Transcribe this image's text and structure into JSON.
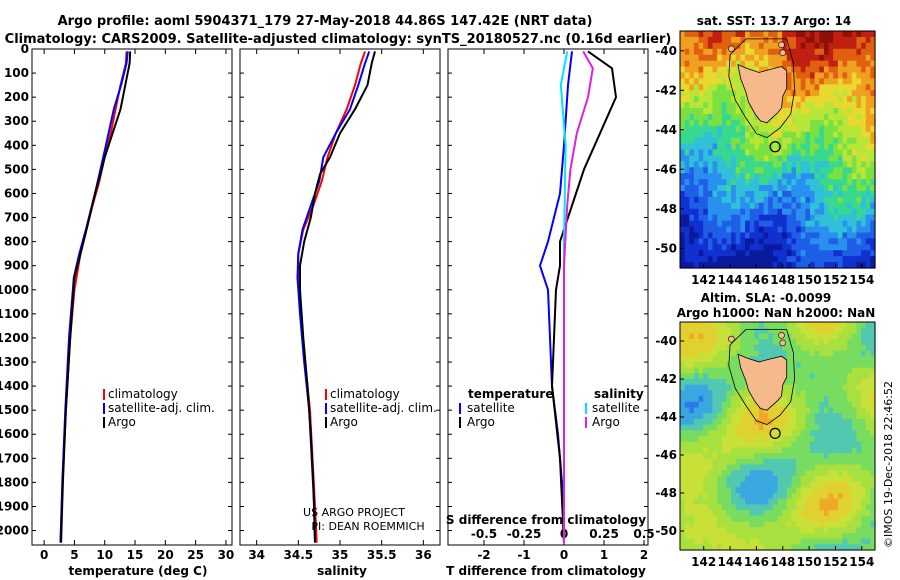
{
  "header": {
    "line1": "Argo profile: aoml 5904371_179 27-May-2018 44.86S 147.42E (NRT data)",
    "line2": "Climatology: CARS2009. Satellite-adjusted climatology: synTS_20180527.nc (0.16d earlier)"
  },
  "colors": {
    "climatology": "#ff0000",
    "satellite": "#0000ff",
    "argo": "#000000",
    "sat_salinity": "#00e5ff",
    "argo_salinity": "#e020e0",
    "land": "#f6b98b"
  },
  "chart_data": [
    {
      "type": "line",
      "id": "temperature",
      "xlabel": "temperature (deg C)",
      "xlim": [
        -2,
        31
      ],
      "xticks": [
        0,
        5,
        10,
        15,
        20,
        25,
        30
      ],
      "ylim": [
        2060,
        0
      ],
      "yticks": [
        0,
        100,
        200,
        300,
        400,
        500,
        600,
        700,
        800,
        900,
        1000,
        1100,
        1200,
        1300,
        1400,
        1500,
        1600,
        1700,
        1800,
        1900,
        2000
      ],
      "legend_position": "middle-right",
      "series": [
        {
          "name": "climatology",
          "key": "climatology",
          "points": [
            [
              13.6,
              10
            ],
            [
              13.5,
              60
            ],
            [
              12.6,
              150
            ],
            [
              11.8,
              250
            ],
            [
              11.0,
              350
            ],
            [
              10.0,
              450
            ],
            [
              9.1,
              550
            ],
            [
              8.0,
              650
            ],
            [
              7.0,
              750
            ],
            [
              6.0,
              850
            ],
            [
              5.0,
              1000
            ],
            [
              4.3,
              1200
            ],
            [
              3.6,
              1500
            ],
            [
              3.2,
              1700
            ],
            [
              2.9,
              1900
            ],
            [
              2.7,
              2050
            ]
          ]
        },
        {
          "name": "satellite-adj. clim.",
          "key": "satellite",
          "points": [
            [
              13.8,
              10
            ],
            [
              13.6,
              60
            ],
            [
              12.7,
              150
            ],
            [
              11.5,
              250
            ],
            [
              10.2,
              400
            ],
            [
              9.3,
              500
            ],
            [
              8.2,
              620
            ],
            [
              6.9,
              750
            ],
            [
              5.8,
              850
            ],
            [
              4.9,
              950
            ],
            [
              4.1,
              1200
            ],
            [
              3.5,
              1500
            ],
            [
              3.0,
              1800
            ],
            [
              2.7,
              2050
            ]
          ]
        },
        {
          "name": "Argo",
          "key": "argo",
          "points": [
            [
              14.2,
              10
            ],
            [
              14.1,
              60
            ],
            [
              13.4,
              150
            ],
            [
              12.6,
              250
            ],
            [
              11.3,
              350
            ],
            [
              10.0,
              450
            ],
            [
              9.3,
              520
            ],
            [
              8.2,
              620
            ],
            [
              7.0,
              750
            ],
            [
              6.0,
              850
            ],
            [
              5.0,
              950
            ],
            [
              4.3,
              1200
            ],
            [
              3.6,
              1500
            ],
            [
              3.1,
              1800
            ],
            [
              2.8,
              2050
            ]
          ]
        }
      ]
    },
    {
      "type": "line",
      "id": "salinity",
      "xlabel": "salinity",
      "xlim": [
        33.8,
        36.2
      ],
      "xticks": [
        34,
        34.5,
        35,
        35.5,
        36
      ],
      "xtick_labels": [
        "34",
        "34.5",
        "35",
        "35.5",
        "36"
      ],
      "ylim": [
        2060,
        0
      ],
      "legend_position": "middle-right",
      "annotations": [
        "US ARGO PROJECT",
        "PI: DEAN ROEMMICH"
      ],
      "series": [
        {
          "name": "climatology",
          "key": "climatology",
          "points": [
            [
              35.3,
              10
            ],
            [
              35.25,
              60
            ],
            [
              35.18,
              150
            ],
            [
              35.08,
              250
            ],
            [
              34.95,
              350
            ],
            [
              34.85,
              450
            ],
            [
              34.78,
              550
            ],
            [
              34.68,
              650
            ],
            [
              34.56,
              750
            ],
            [
              34.5,
              850
            ],
            [
              34.5,
              950
            ],
            [
              34.53,
              1100
            ],
            [
              34.58,
              1300
            ],
            [
              34.64,
              1500
            ],
            [
              34.67,
              1700
            ],
            [
              34.7,
              1900
            ],
            [
              34.72,
              2050
            ]
          ]
        },
        {
          "name": "satellite-adj. clim.",
          "key": "satellite",
          "points": [
            [
              35.35,
              10
            ],
            [
              35.3,
              60
            ],
            [
              35.22,
              150
            ],
            [
              35.12,
              250
            ],
            [
              34.95,
              350
            ],
            [
              34.8,
              450
            ],
            [
              34.75,
              550
            ],
            [
              34.65,
              650
            ],
            [
              34.55,
              750
            ],
            [
              34.5,
              850
            ],
            [
              34.49,
              950
            ],
            [
              34.52,
              1100
            ],
            [
              34.57,
              1300
            ],
            [
              34.63,
              1500
            ],
            [
              34.66,
              1700
            ],
            [
              34.69,
              1900
            ],
            [
              34.7,
              2050
            ]
          ]
        },
        {
          "name": "Argo",
          "key": "argo",
          "points": [
            [
              35.42,
              10
            ],
            [
              35.38,
              60
            ],
            [
              35.33,
              150
            ],
            [
              35.18,
              250
            ],
            [
              35.0,
              350
            ],
            [
              34.88,
              450
            ],
            [
              34.76,
              520
            ],
            [
              34.7,
              600
            ],
            [
              34.65,
              700
            ],
            [
              34.57,
              800
            ],
            [
              34.52,
              900
            ],
            [
              34.52,
              1000
            ],
            [
              34.56,
              1200
            ],
            [
              34.61,
              1400
            ],
            [
              34.65,
              1600
            ],
            [
              34.68,
              1800
            ],
            [
              34.7,
              2050
            ]
          ]
        }
      ]
    },
    {
      "type": "line",
      "id": "difference",
      "xlabel": "T difference from climatology",
      "top_axis_label": "S difference from climatology",
      "xlim": [
        -2.9,
        2.1
      ],
      "xticks": [
        -2,
        -1,
        0,
        1,
        2
      ],
      "top_ticks": [
        -0.5,
        -0.25,
        0,
        0.25,
        0.5
      ],
      "top_tick_labels": [
        "-0.5",
        "-0.25",
        "0",
        "0.25",
        "0.5"
      ],
      "ylim": [
        2060,
        0
      ],
      "legend_position": "middle",
      "legend": {
        "temperature_title": "temperature",
        "salinity_title": "salinity"
      },
      "series": [
        {
          "name": "satellite",
          "group": "temperature",
          "key": "satellite",
          "points": [
            [
              0.2,
              10
            ],
            [
              0.1,
              150
            ],
            [
              0.0,
              400
            ],
            [
              -0.1,
              600
            ],
            [
              -0.4,
              800
            ],
            [
              -0.6,
              900
            ],
            [
              -0.4,
              1000
            ],
            [
              -0.3,
              1400
            ],
            [
              -0.15,
              1600
            ],
            [
              -0.05,
              1800
            ],
            [
              0.0,
              2050
            ]
          ]
        },
        {
          "name": "Argo",
          "group": "temperature",
          "key": "argo",
          "points": [
            [
              0.6,
              10
            ],
            [
              1.2,
              80
            ],
            [
              1.3,
              200
            ],
            [
              0.9,
              350
            ],
            [
              0.5,
              500
            ],
            [
              0.2,
              650
            ],
            [
              -0.1,
              800
            ],
            [
              -0.1,
              900
            ],
            [
              -0.2,
              1000
            ],
            [
              -0.3,
              1400
            ],
            [
              -0.1,
              1700
            ],
            [
              0.0,
              2050
            ]
          ]
        },
        {
          "name": "satellite",
          "group": "salinity",
          "key": "sat_salinity",
          "points": [
            [
              0.02,
              10
            ],
            [
              -0.02,
              150
            ],
            [
              0.01,
              400
            ],
            [
              0.0,
              800
            ],
            [
              0.0,
              1200
            ],
            [
              0.0,
              2050
            ]
          ]
        },
        {
          "name": "Argo",
          "group": "salinity",
          "key": "argo_salinity",
          "points": [
            [
              0.12,
              10
            ],
            [
              0.18,
              80
            ],
            [
              0.15,
              200
            ],
            [
              0.08,
              350
            ],
            [
              0.04,
              500
            ],
            [
              0.02,
              650
            ],
            [
              0.0,
              900
            ],
            [
              0.0,
              2050
            ]
          ]
        }
      ]
    }
  ],
  "maps": [
    {
      "id": "sst",
      "title": "sat. SST: 13.7 Argo: 14",
      "lon": [
        140.2,
        155.0
      ],
      "lat": [
        -51.0,
        -39.0
      ],
      "xticks": [
        142,
        144,
        146,
        148,
        150,
        152,
        154
      ],
      "yticks": [
        -40,
        -42,
        -44,
        -46,
        -48,
        -50
      ],
      "argo_position": [
        147.42,
        -44.86
      ]
    },
    {
      "id": "sla",
      "title_line1": "Altim. SLA: -0.0099",
      "title_line2": "Argo h1000: NaN h2000: NaN",
      "lon": [
        140.2,
        155.0
      ],
      "lat": [
        -51.0,
        -39.0
      ],
      "xticks": [
        142,
        144,
        146,
        148,
        150,
        152,
        154
      ],
      "yticks": [
        -40,
        -42,
        -44,
        -46,
        -48,
        -50
      ],
      "argo_position": [
        147.42,
        -44.86
      ]
    }
  ],
  "footer": {
    "stamp": "©IMOS 19-Dec-2018 22:46:52"
  }
}
